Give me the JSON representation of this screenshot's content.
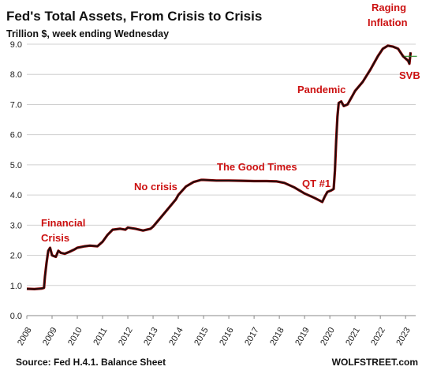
{
  "chart_data": {
    "type": "line",
    "title": "Fed's Total Assets, From Crisis to Crisis",
    "subtitle": "Trillion $, week ending Wednesday",
    "ylim": [
      0,
      9
    ],
    "xlim": [
      2008,
      2023.4
    ],
    "y_ticks": [
      "0.0",
      "1.0",
      "2.0",
      "3.0",
      "4.0",
      "5.0",
      "6.0",
      "7.0",
      "8.0",
      "9.0"
    ],
    "x_ticks": [
      "2008",
      "2009",
      "2010",
      "2011",
      "2012",
      "2013",
      "2014",
      "2015",
      "2016",
      "2017",
      "2018",
      "2019",
      "2020",
      "2021",
      "2022",
      "2023"
    ],
    "grid": "horizontal",
    "series": [
      {
        "color": "#111111",
        "points": [
          [
            2008.0,
            0.89
          ],
          [
            2008.3,
            0.88
          ],
          [
            2008.6,
            0.9
          ],
          [
            2008.68,
            0.92
          ],
          [
            2008.72,
            1.3
          ],
          [
            2008.78,
            1.75
          ],
          [
            2008.85,
            2.15
          ],
          [
            2008.92,
            2.25
          ],
          [
            2009.0,
            2.0
          ],
          [
            2009.15,
            1.95
          ],
          [
            2009.25,
            2.15
          ],
          [
            2009.35,
            2.08
          ],
          [
            2009.5,
            2.05
          ],
          [
            2009.7,
            2.12
          ],
          [
            2009.9,
            2.2
          ],
          [
            2010.0,
            2.25
          ],
          [
            2010.3,
            2.3
          ],
          [
            2010.5,
            2.32
          ],
          [
            2010.8,
            2.3
          ],
          [
            2011.0,
            2.45
          ],
          [
            2011.2,
            2.68
          ],
          [
            2011.4,
            2.85
          ],
          [
            2011.7,
            2.88
          ],
          [
            2011.9,
            2.85
          ],
          [
            2012.0,
            2.92
          ],
          [
            2012.3,
            2.88
          ],
          [
            2012.6,
            2.82
          ],
          [
            2012.9,
            2.88
          ],
          [
            2013.0,
            2.95
          ],
          [
            2013.3,
            3.25
          ],
          [
            2013.6,
            3.55
          ],
          [
            2013.9,
            3.85
          ],
          [
            2014.0,
            4.0
          ],
          [
            2014.3,
            4.28
          ],
          [
            2014.6,
            4.43
          ],
          [
            2014.9,
            4.5
          ],
          [
            2015.0,
            4.5
          ],
          [
            2015.5,
            4.48
          ],
          [
            2016.0,
            4.48
          ],
          [
            2016.5,
            4.47
          ],
          [
            2017.0,
            4.46
          ],
          [
            2017.5,
            4.46
          ],
          [
            2017.9,
            4.45
          ],
          [
            2018.2,
            4.4
          ],
          [
            2018.6,
            4.25
          ],
          [
            2019.0,
            4.05
          ],
          [
            2019.4,
            3.9
          ],
          [
            2019.7,
            3.77
          ],
          [
            2019.8,
            3.95
          ],
          [
            2019.9,
            4.1
          ],
          [
            2020.05,
            4.15
          ],
          [
            2020.15,
            4.2
          ],
          [
            2020.2,
            4.8
          ],
          [
            2020.25,
            5.8
          ],
          [
            2020.3,
            6.6
          ],
          [
            2020.35,
            7.05
          ],
          [
            2020.45,
            7.1
          ],
          [
            2020.55,
            6.95
          ],
          [
            2020.7,
            7.0
          ],
          [
            2020.9,
            7.3
          ],
          [
            2021.0,
            7.45
          ],
          [
            2021.3,
            7.75
          ],
          [
            2021.6,
            8.15
          ],
          [
            2021.9,
            8.6
          ],
          [
            2022.1,
            8.85
          ],
          [
            2022.3,
            8.95
          ],
          [
            2022.5,
            8.92
          ],
          [
            2022.7,
            8.85
          ],
          [
            2022.9,
            8.6
          ],
          [
            2023.1,
            8.45
          ],
          [
            2023.15,
            8.35
          ],
          [
            2023.2,
            8.73
          ]
        ]
      }
    ],
    "reference_line": {
      "y": 8.6,
      "x_from": 2022.95,
      "x_to": 2023.45,
      "color": "#2a8a2a"
    },
    "annotations": [
      {
        "text": "Financial",
        "color": "#cc1111"
      },
      {
        "text": "Crisis",
        "color": "#cc1111"
      },
      {
        "text": "No crisis",
        "color": "#cc1111"
      },
      {
        "text": "The Good Times",
        "color": "#cc1111"
      },
      {
        "text": "QT #1",
        "color": "#cc1111"
      },
      {
        "text": "Pandemic",
        "color": "#cc1111"
      },
      {
        "text": "Raging",
        "color": "#cc1111"
      },
      {
        "text": "Inflation",
        "color": "#cc1111"
      },
      {
        "text": "SVB",
        "color": "#cc1111"
      }
    ]
  },
  "footer": {
    "source": "Source: Fed H.4.1. Balance Sheet",
    "brand": "WOLFSTREET.com"
  }
}
